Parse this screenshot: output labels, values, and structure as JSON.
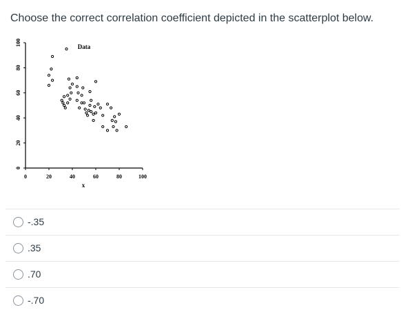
{
  "question": {
    "text": "Choose the correct correlation coefficient depicted in the scatterplot below."
  },
  "chart_data": {
    "type": "scatter",
    "title": "Data",
    "xlabel": "x",
    "ylabel": "",
    "xlim": [
      0,
      100
    ],
    "ylim": [
      0,
      100
    ],
    "x_ticks": [
      "0",
      "20",
      "40",
      "60",
      "80",
      "100"
    ],
    "y_ticks": [
      "0",
      "20",
      "40",
      "60",
      "80",
      "100"
    ],
    "points": [
      [
        20,
        74
      ],
      [
        20,
        66
      ],
      [
        22,
        79
      ],
      [
        23,
        89
      ],
      [
        23,
        70
      ],
      [
        35,
        95
      ],
      [
        37,
        71
      ],
      [
        36,
        58
      ],
      [
        33,
        57
      ],
      [
        31,
        54
      ],
      [
        32,
        52
      ],
      [
        33,
        50
      ],
      [
        34,
        48
      ],
      [
        36,
        52
      ],
      [
        38,
        55
      ],
      [
        39,
        60
      ],
      [
        38,
        64
      ],
      [
        40,
        67
      ],
      [
        44,
        72
      ],
      [
        44,
        65
      ],
      [
        45,
        60
      ],
      [
        44,
        54
      ],
      [
        46,
        48
      ],
      [
        48,
        52
      ],
      [
        48,
        58
      ],
      [
        49,
        64
      ],
      [
        50,
        52
      ],
      [
        51,
        47
      ],
      [
        52,
        44
      ],
      [
        53,
        42
      ],
      [
        54,
        46
      ],
      [
        55,
        50
      ],
      [
        56,
        54
      ],
      [
        56,
        45
      ],
      [
        58,
        43
      ],
      [
        58,
        38
      ],
      [
        60,
        44
      ],
      [
        59,
        49
      ],
      [
        62,
        51
      ],
      [
        55,
        61
      ],
      [
        60,
        69
      ],
      [
        64,
        48
      ],
      [
        66,
        42
      ],
      [
        66,
        33
      ],
      [
        70,
        30
      ],
      [
        70,
        51
      ],
      [
        73,
        48
      ],
      [
        74,
        38
      ],
      [
        75,
        33
      ],
      [
        76,
        41
      ],
      [
        77,
        37
      ],
      [
        78,
        30
      ],
      [
        80,
        43
      ],
      [
        86,
        33
      ]
    ]
  },
  "answers": [
    {
      "label": "-.35"
    },
    {
      "label": ".35"
    },
    {
      "label": ".70"
    },
    {
      "label": "-.70"
    }
  ]
}
